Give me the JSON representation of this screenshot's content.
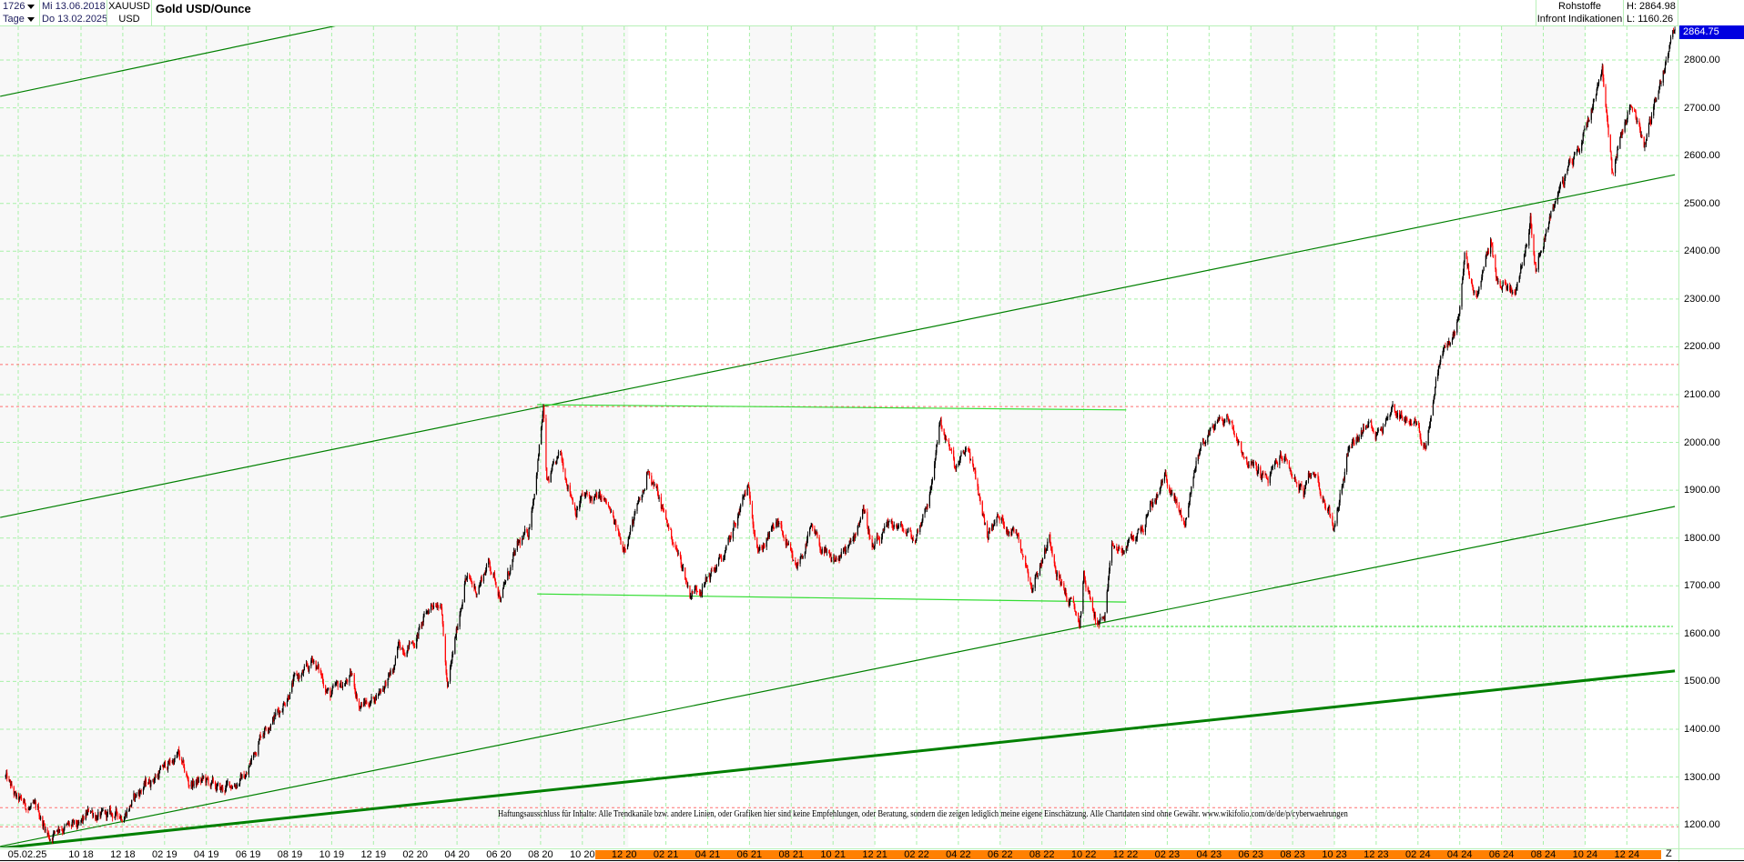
{
  "header": {
    "bars_count": "1726",
    "period": "Tage",
    "start_date": "Mi 13.06.2018",
    "end_date": "Do 13.02.2025",
    "symbol": "XAUUSD",
    "currency": "USD",
    "title": "Gold USD/Ounce",
    "category": "Rohstoffe",
    "source": "Infront Indikationen",
    "high": "H: 2864.98",
    "low": "L: 1160.26"
  },
  "last_price": "2864.75",
  "disclaimer": "Haftungsausschluss für Inhalte: Alle Trendkanäle bzw. andere Linien, oder Grafiken hier sind keine Empfehlungen, oder Beratung, sondern die zeigen lediglich meine eigene Einschätzung. Alle Chartdaten sind ohne Gewähr.  www.wikifolio.com/de/de/p/cyberwaehrungen",
  "z_label": "Z",
  "colors": {
    "up_candle": "#000000",
    "down_candle": "#ff0000",
    "grid": "#a8f0a8",
    "trend_dark": "#008000",
    "trend_light": "#33dd33",
    "resistance_dashed": "#ff7070",
    "price_tag": "#0000e0",
    "axis_highlight": "#ff8000"
  },
  "chart_data": {
    "type": "candlestick",
    "title": "Gold USD/Ounce",
    "ylim": [
      1150,
      2880
    ],
    "y_ticks": [
      "1200.00",
      "1300.00",
      "1400.00",
      "1500.00",
      "1600.00",
      "1700.00",
      "1800.00",
      "1900.00",
      "2000.00",
      "2100.00",
      "2200.00",
      "2300.00",
      "2400.00",
      "2500.00",
      "2600.00",
      "2700.00",
      "2800.00"
    ],
    "x_first_label": "05.02.25",
    "x_ticks": [
      "10 18",
      "12 18",
      "02 19",
      "04 19",
      "06 19",
      "08 19",
      "10 19",
      "12 19",
      "02 20",
      "04 20",
      "06 20",
      "08 20",
      "10 20",
      "12 20",
      "02 21",
      "04 21",
      "06 21",
      "08 21",
      "10 21",
      "12 21",
      "02 22",
      "04 22",
      "06 22",
      "08 22",
      "10 22",
      "12 22",
      "02 23",
      "04 23",
      "06 23",
      "08 23",
      "10 23",
      "12 23",
      "02 24",
      "04 24",
      "06 24",
      "08 24",
      "10 24",
      "12 24"
    ],
    "grid": true,
    "close_keypoints": [
      [
        "2018-06-13",
        1300
      ],
      [
        "2018-06-29",
        1250
      ],
      [
        "2018-07-31",
        1225
      ],
      [
        "2018-08-16",
        1175
      ],
      [
        "2018-08-31",
        1200
      ],
      [
        "2018-09-28",
        1190
      ],
      [
        "2018-10-15",
        1230
      ],
      [
        "2018-10-31",
        1215
      ],
      [
        "2018-11-30",
        1222
      ],
      [
        "2018-12-31",
        1280
      ],
      [
        "2019-01-31",
        1320
      ],
      [
        "2019-02-20",
        1345
      ],
      [
        "2019-03-07",
        1285
      ],
      [
        "2019-03-29",
        1292
      ],
      [
        "2019-04-23",
        1270
      ],
      [
        "2019-05-31",
        1305
      ],
      [
        "2019-06-20",
        1390
      ],
      [
        "2019-06-28",
        1410
      ],
      [
        "2019-07-18",
        1440
      ],
      [
        "2019-08-07",
        1500
      ],
      [
        "2019-08-31",
        1525
      ],
      [
        "2019-09-04",
        1550
      ],
      [
        "2019-09-30",
        1470
      ],
      [
        "2019-10-31",
        1510
      ],
      [
        "2019-11-12",
        1450
      ],
      [
        "2019-11-29",
        1460
      ],
      [
        "2019-12-31",
        1520
      ],
      [
        "2020-01-08",
        1570
      ],
      [
        "2020-01-31",
        1585
      ],
      [
        "2020-02-24",
        1660
      ],
      [
        "2020-03-09",
        1680
      ],
      [
        "2020-03-19",
        1480
      ],
      [
        "2020-03-31",
        1590
      ],
      [
        "2020-04-14",
        1720
      ],
      [
        "2020-04-30",
        1690
      ],
      [
        "2020-05-18",
        1750
      ],
      [
        "2020-06-05",
        1680
      ],
      [
        "2020-06-30",
        1780
      ],
      [
        "2020-07-15",
        1810
      ],
      [
        "2020-07-27",
        1940
      ],
      [
        "2020-08-06",
        2070
      ],
      [
        "2020-08-11",
        1910
      ],
      [
        "2020-08-31",
        1970
      ],
      [
        "2020-09-23",
        1860
      ],
      [
        "2020-09-30",
        1885
      ],
      [
        "2020-10-31",
        1880
      ],
      [
        "2020-11-09",
        1860
      ],
      [
        "2020-11-30",
        1780
      ],
      [
        "2020-12-31",
        1895
      ],
      [
        "2021-01-06",
        1950
      ],
      [
        "2021-01-29",
        1850
      ],
      [
        "2021-02-26",
        1735
      ],
      [
        "2021-03-08",
        1685
      ],
      [
        "2021-03-31",
        1710
      ],
      [
        "2021-04-30",
        1770
      ],
      [
        "2021-05-31",
        1905
      ],
      [
        "2021-06-17",
        1775
      ],
      [
        "2021-07-15",
        1830
      ],
      [
        "2021-08-09",
        1730
      ],
      [
        "2021-08-31",
        1815
      ],
      [
        "2021-09-30",
        1745
      ],
      [
        "2021-10-31",
        1785
      ],
      [
        "2021-11-16",
        1870
      ],
      [
        "2021-11-30",
        1775
      ],
      [
        "2021-12-31",
        1830
      ],
      [
        "2022-01-31",
        1795
      ],
      [
        "2022-02-24",
        1910
      ],
      [
        "2022-03-08",
        2050
      ],
      [
        "2022-03-31",
        1940
      ],
      [
        "2022-04-18",
        1990
      ],
      [
        "2022-05-16",
        1810
      ],
      [
        "2022-05-31",
        1840
      ],
      [
        "2022-06-30",
        1810
      ],
      [
        "2022-07-21",
        1700
      ],
      [
        "2022-08-15",
        1800
      ],
      [
        "2022-08-31",
        1710
      ],
      [
        "2022-09-28",
        1620
      ],
      [
        "2022-10-04",
        1720
      ],
      [
        "2022-10-21",
        1630
      ],
      [
        "2022-11-03",
        1630
      ],
      [
        "2022-11-15",
        1775
      ],
      [
        "2022-11-30",
        1770
      ],
      [
        "2022-12-30",
        1825
      ],
      [
        "2023-01-31",
        1930
      ],
      [
        "2023-02-28",
        1825
      ],
      [
        "2023-03-20",
        1980
      ],
      [
        "2023-04-13",
        2040
      ],
      [
        "2023-05-04",
        2050
      ],
      [
        "2023-05-31",
        1960
      ],
      [
        "2023-06-30",
        1920
      ],
      [
        "2023-07-20",
        1975
      ],
      [
        "2023-08-21",
        1890
      ],
      [
        "2023-09-05",
        1940
      ],
      [
        "2023-10-05",
        1820
      ],
      [
        "2023-10-27",
        2000
      ],
      [
        "2023-11-30",
        2040
      ],
      [
        "2023-12-04",
        2020
      ],
      [
        "2023-12-28",
        2070
      ],
      [
        "2024-01-31",
        2040
      ],
      [
        "2024-02-14",
        1990
      ],
      [
        "2024-03-08",
        2180
      ],
      [
        "2024-03-31",
        2230
      ],
      [
        "2024-04-12",
        2380
      ],
      [
        "2024-04-30",
        2290
      ],
      [
        "2024-05-20",
        2420
      ],
      [
        "2024-05-31",
        2330
      ],
      [
        "2024-06-28",
        2325
      ],
      [
        "2024-07-17",
        2470
      ],
      [
        "2024-07-25",
        2370
      ],
      [
        "2024-08-20",
        2500
      ],
      [
        "2024-09-30",
        2630
      ],
      [
        "2024-10-30",
        2785
      ],
      [
        "2024-11-14",
        2565
      ],
      [
        "2024-11-25",
        2630
      ],
      [
        "2024-12-11",
        2715
      ],
      [
        "2024-12-31",
        2625
      ],
      [
        "2025-01-31",
        2800
      ],
      [
        "2025-02-13",
        2864.75
      ]
    ],
    "trend_lines": [
      {
        "from": [
          "2018-06-05",
          2724
        ],
        "to": [
          "2019-10-16",
          2874
        ],
        "style": "solid",
        "color": "#008000",
        "weight": "thin"
      },
      {
        "from": [
          "2018-06-05",
          1843
        ],
        "to": [
          "2025-02-13",
          2560
        ],
        "style": "solid",
        "color": "#008000",
        "weight": "thin"
      },
      {
        "from": [
          "2018-06-05",
          1155
        ],
        "to": [
          "2025-02-13",
          1866
        ],
        "style": "solid",
        "color": "#008000",
        "weight": "thin"
      },
      {
        "from": [
          "2018-06-05",
          1151
        ],
        "to": [
          "2025-02-13",
          1522
        ],
        "style": "solid",
        "color": "#008000",
        "weight": "thick"
      },
      {
        "from": [
          "2020-07-28",
          2079
        ],
        "to": [
          "2022-12-05",
          2068
        ],
        "style": "solid",
        "color": "#33dd33",
        "weight": "thin"
      },
      {
        "from": [
          "2020-07-28",
          1683
        ],
        "to": [
          "2022-12-05",
          1666
        ],
        "style": "solid",
        "color": "#33dd33",
        "weight": "thin"
      },
      {
        "from": [
          "2022-10-18",
          1615
        ],
        "to": [
          "2025-02-10",
          1615
        ],
        "style": "dotted",
        "color": "#33dd33",
        "weight": "thin"
      }
    ],
    "horizontal_levels": [
      2163,
      2075,
      1236,
      1196
    ]
  }
}
